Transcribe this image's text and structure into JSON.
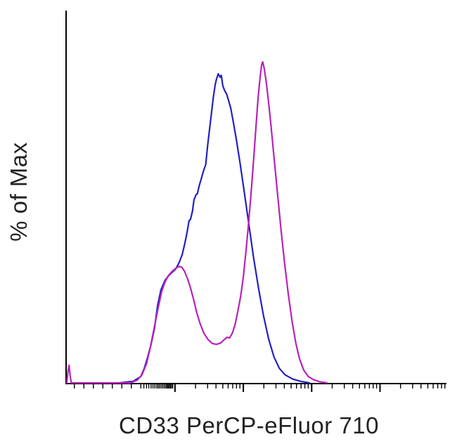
{
  "figure": {
    "background": "#ffffff"
  },
  "chart_data": {
    "type": "line",
    "subtype": "flow-cytometry-histogram-overlay",
    "xlabel": "CD33 PerCP-eFluor 710",
    "ylabel": "% of Max",
    "x_axis": {
      "scale": "biexponential",
      "tick_labels_visible": false
    },
    "y_axis": {
      "tick_labels_visible": false
    },
    "ylim": [
      0,
      116
    ],
    "axis_color": "#000000",
    "label_color": "#222222",
    "grid": false,
    "legend_position": "none",
    "series": [
      {
        "name": "blue-sample",
        "color": "#2222c0",
        "points": [
          [
            13.9,
            0
          ],
          [
            17.5,
            0.5
          ],
          [
            19.5,
            2
          ],
          [
            20.4,
            4.5
          ],
          [
            21.3,
            8
          ],
          [
            22.2,
            12
          ],
          [
            23.1,
            17
          ],
          [
            23.9,
            24
          ],
          [
            24.8,
            29
          ],
          [
            25.9,
            32
          ],
          [
            26.9,
            33.5
          ],
          [
            27.8,
            34.5
          ],
          [
            28.7,
            35.5
          ],
          [
            29.6,
            37.5
          ],
          [
            30.4,
            40
          ],
          [
            31.1,
            43.5
          ],
          [
            31.7,
            47
          ],
          [
            32.2,
            50.5
          ],
          [
            32.6,
            51
          ],
          [
            33.1,
            53.5
          ],
          [
            33.5,
            57
          ],
          [
            34.0,
            58.5
          ],
          [
            34.4,
            59
          ],
          [
            34.9,
            61.5
          ],
          [
            35.4,
            63.5
          ],
          [
            36.0,
            66
          ],
          [
            36.6,
            68
          ],
          [
            37.1,
            74
          ],
          [
            37.6,
            79
          ],
          [
            38.1,
            84
          ],
          [
            38.6,
            89
          ],
          [
            39.1,
            93
          ],
          [
            39.4,
            94.5
          ],
          [
            39.9,
            96.3
          ],
          [
            40.4,
            95.2
          ],
          [
            40.7,
            95.8
          ],
          [
            41.1,
            92.5
          ],
          [
            41.6,
            91
          ],
          [
            42.1,
            90
          ],
          [
            42.6,
            88
          ],
          [
            43.2,
            85.5
          ],
          [
            43.9,
            81
          ],
          [
            44.7,
            75.5
          ],
          [
            45.7,
            68
          ],
          [
            46.8,
            59
          ],
          [
            48.0,
            49
          ],
          [
            49.2,
            39
          ],
          [
            50.5,
            29.5
          ],
          [
            51.8,
            21
          ],
          [
            53.2,
            13.5
          ],
          [
            54.6,
            8
          ],
          [
            56.0,
            4.5
          ],
          [
            57.5,
            2.5
          ],
          [
            59.5,
            1.2
          ],
          [
            61.5,
            0.5
          ],
          [
            63.9,
            0
          ]
        ]
      },
      {
        "name": "magenta-sample",
        "color": "#b822b8",
        "points": [
          [
            0,
            0
          ],
          [
            0.3,
            3.5
          ],
          [
            0.6,
            5.5
          ],
          [
            0.9,
            2
          ],
          [
            1.2,
            0
          ],
          [
            16.7,
            0
          ],
          [
            18.5,
            0.8
          ],
          [
            19.8,
            2.5
          ],
          [
            21.0,
            6
          ],
          [
            22.0,
            11
          ],
          [
            23.0,
            17
          ],
          [
            24.0,
            23
          ],
          [
            25.0,
            28.5
          ],
          [
            25.9,
            31.5
          ],
          [
            26.8,
            33.5
          ],
          [
            27.8,
            34.8
          ],
          [
            28.8,
            35.8
          ],
          [
            29.6,
            36.3
          ],
          [
            30.3,
            36.0
          ],
          [
            31.0,
            34.8
          ],
          [
            31.8,
            32.5
          ],
          [
            32.6,
            29.5
          ],
          [
            33.4,
            26
          ],
          [
            34.2,
            22
          ],
          [
            35.1,
            18.5
          ],
          [
            36.1,
            15.5
          ],
          [
            37.2,
            13.5
          ],
          [
            38.3,
            12.3
          ],
          [
            39.4,
            12.0
          ],
          [
            40.5,
            12.4
          ],
          [
            41.4,
            13.4
          ],
          [
            42.2,
            14.2
          ],
          [
            42.9,
            14.0
          ],
          [
            43.6,
            15.5
          ],
          [
            44.3,
            18
          ],
          [
            45.0,
            22
          ],
          [
            45.8,
            27
          ],
          [
            46.5,
            33
          ],
          [
            47.2,
            41
          ],
          [
            47.9,
            50
          ],
          [
            48.6,
            60
          ],
          [
            49.3,
            71
          ],
          [
            49.9,
            81
          ],
          [
            50.4,
            89
          ],
          [
            50.9,
            95
          ],
          [
            51.3,
            99
          ],
          [
            51.6,
            100
          ],
          [
            52.0,
            98
          ],
          [
            52.5,
            94
          ],
          [
            53.1,
            88
          ],
          [
            53.8,
            80
          ],
          [
            54.6,
            70
          ],
          [
            55.5,
            59
          ],
          [
            56.4,
            48
          ],
          [
            57.3,
            38
          ],
          [
            58.3,
            28
          ],
          [
            59.3,
            19.5
          ],
          [
            60.3,
            12.5
          ],
          [
            61.3,
            7.5
          ],
          [
            62.4,
            4
          ],
          [
            63.6,
            2
          ],
          [
            65.0,
            1
          ],
          [
            66.5,
            0.4
          ],
          [
            68.5,
            0
          ]
        ]
      }
    ],
    "x_ticks": [
      [
        2,
        0
      ],
      [
        4.5,
        0
      ],
      [
        7,
        0
      ],
      [
        9.5,
        0
      ],
      [
        12,
        0
      ],
      [
        14.5,
        0
      ],
      [
        17,
        0
      ],
      [
        19.5,
        0
      ],
      [
        20.3,
        0
      ],
      [
        21,
        0
      ],
      [
        21.6,
        0
      ],
      [
        22.2,
        0
      ],
      [
        22.7,
        0
      ],
      [
        23.2,
        0
      ],
      [
        23.7,
        0
      ],
      [
        24.1,
        0
      ],
      [
        24.5,
        0
      ],
      [
        24.9,
        0
      ],
      [
        25.3,
        0
      ],
      [
        25.7,
        0
      ],
      [
        26.1,
        0
      ],
      [
        26.4,
        0
      ],
      [
        26.7,
        0
      ],
      [
        27,
        0
      ],
      [
        27.3,
        0
      ],
      [
        27.6,
        0
      ],
      [
        27.9,
        0
      ],
      [
        28.5,
        1
      ],
      [
        33.9,
        0
      ],
      [
        37.1,
        0
      ],
      [
        39.3,
        0
      ],
      [
        41.1,
        0
      ],
      [
        42.5,
        0
      ],
      [
        43.7,
        0
      ],
      [
        44.7,
        0
      ],
      [
        45.6,
        0
      ],
      [
        46.5,
        1
      ],
      [
        51.9,
        0
      ],
      [
        55.1,
        0
      ],
      [
        57.3,
        0
      ],
      [
        59.1,
        0
      ],
      [
        60.5,
        0
      ],
      [
        61.7,
        0
      ],
      [
        62.7,
        0
      ],
      [
        63.6,
        0
      ],
      [
        64.5,
        1
      ],
      [
        69.9,
        0
      ],
      [
        73.1,
        0
      ],
      [
        75.3,
        0
      ],
      [
        77.1,
        0
      ],
      [
        78.5,
        0
      ],
      [
        79.7,
        0
      ],
      [
        80.7,
        0
      ],
      [
        81.6,
        0
      ],
      [
        82.5,
        1
      ],
      [
        87.9,
        0
      ],
      [
        91.1,
        0
      ],
      [
        93.3,
        0
      ],
      [
        95.1,
        0
      ],
      [
        96.5,
        0
      ],
      [
        97.7,
        0
      ],
      [
        98.7,
        0
      ],
      [
        99.6,
        0
      ]
    ]
  }
}
